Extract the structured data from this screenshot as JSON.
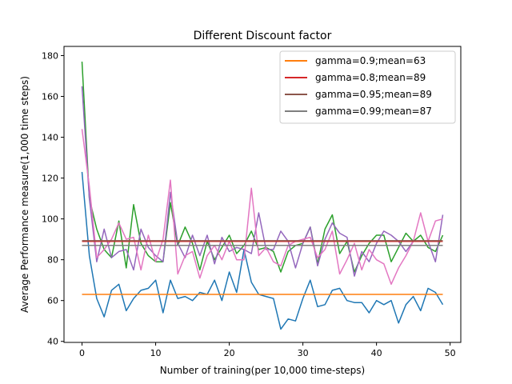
{
  "chart_data": {
    "type": "line",
    "title": "Different Discount factor",
    "xlabel": "Number of training(per 10,000 time-steps)",
    "ylabel": "Average Performance measure(1,000 time steps)",
    "xlim": [
      -2.45,
      51.45
    ],
    "ylim": [
      39.5,
      184.5
    ],
    "xticks": [
      0,
      10,
      20,
      30,
      40,
      50
    ],
    "yticks": [
      40,
      60,
      80,
      100,
      120,
      140,
      160,
      180
    ],
    "grid": false,
    "legend_position": "top-right",
    "x": [
      0,
      1,
      2,
      3,
      4,
      5,
      6,
      7,
      8,
      9,
      10,
      11,
      12,
      13,
      14,
      15,
      16,
      17,
      18,
      19,
      20,
      21,
      22,
      23,
      24,
      25,
      26,
      27,
      28,
      29,
      30,
      31,
      32,
      33,
      34,
      35,
      36,
      37,
      38,
      39,
      40,
      41,
      42,
      43,
      44,
      45,
      46,
      47,
      48,
      49
    ],
    "series": [
      {
        "color": "#1f77b4",
        "values": [
          123,
          82,
          61,
          52,
          65,
          68,
          55,
          61,
          65,
          66,
          70,
          54,
          70,
          61,
          62,
          60,
          64,
          63,
          70,
          60,
          74,
          64,
          85,
          69,
          63,
          62,
          61,
          46,
          51,
          50,
          61,
          70,
          57,
          58,
          65,
          66,
          60,
          59,
          59,
          54,
          60,
          58,
          60,
          49,
          58,
          62,
          55,
          66,
          64,
          58
        ]
      },
      {
        "color": "#2ca02c",
        "values": [
          177,
          110,
          95,
          85,
          81,
          99,
          76,
          107,
          88,
          82,
          79,
          79,
          108,
          87,
          96,
          88,
          75,
          89,
          80,
          86,
          92,
          83,
          87,
          94,
          85,
          86,
          84,
          74,
          84,
          87,
          88,
          96,
          78,
          95,
          102,
          83,
          89,
          74,
          82,
          88,
          92,
          92,
          79,
          86,
          93,
          89,
          92,
          86,
          84,
          92
        ]
      },
      {
        "color": "#9467bd",
        "values": [
          165,
          110,
          79,
          95,
          81,
          84,
          85,
          75,
          95,
          86,
          82,
          79,
          113,
          88,
          81,
          92,
          82,
          92,
          78,
          91,
          84,
          86,
          85,
          83,
          103,
          85,
          85,
          94,
          89,
          76,
          88,
          96,
          77,
          90,
          98,
          93,
          91,
          72,
          84,
          79,
          88,
          94,
          92,
          89,
          84,
          89,
          89,
          89,
          79,
          102
        ]
      },
      {
        "color": "#e377c2",
        "values": [
          144,
          116,
          81,
          85,
          90,
          98,
          90,
          91,
          75,
          92,
          79,
          90,
          119,
          73,
          82,
          84,
          71,
          82,
          87,
          80,
          89,
          80,
          80,
          115,
          82,
          86,
          79,
          77,
          87,
          89,
          90,
          91,
          81,
          85,
          94,
          73,
          80,
          88,
          75,
          85,
          80,
          78,
          68,
          76,
          82,
          89,
          103,
          89,
          99,
          100
        ]
      },
      {
        "name": "gamma=0.9;mean=63",
        "color": "#ff7f0e",
        "values": [
          63,
          63,
          63,
          63,
          63,
          63,
          63,
          63,
          63,
          63,
          63,
          63,
          63,
          63,
          63,
          63,
          63,
          63,
          63,
          63,
          63,
          63,
          63,
          63,
          63,
          63,
          63,
          63,
          63,
          63,
          63,
          63,
          63,
          63,
          63,
          63,
          63,
          63,
          63,
          63,
          63,
          63,
          63,
          63,
          63,
          63,
          63,
          63,
          63,
          63
        ]
      },
      {
        "name": "gamma=0.8;mean=89",
        "color": "#d62728",
        "values": [
          89,
          89,
          89,
          89,
          89,
          89,
          89,
          89,
          89,
          89,
          89,
          89,
          89,
          89,
          89,
          89,
          89,
          89,
          89,
          89,
          89,
          89,
          89,
          89,
          89,
          89,
          89,
          89,
          89,
          89,
          89,
          89,
          89,
          89,
          89,
          89,
          89,
          89,
          89,
          89,
          89,
          89,
          89,
          89,
          89,
          89,
          89,
          89,
          89,
          89
        ]
      },
      {
        "name": "gamma=0.95;mean=89",
        "color": "#8c564b",
        "values": [
          89.3,
          89.3,
          89.3,
          89.3,
          89.3,
          89.3,
          89.3,
          89.3,
          89.3,
          89.3,
          89.3,
          89.3,
          89.3,
          89.3,
          89.3,
          89.3,
          89.3,
          89.3,
          89.3,
          89.3,
          89.3,
          89.3,
          89.3,
          89.3,
          89.3,
          89.3,
          89.3,
          89.3,
          89.3,
          89.3,
          89.3,
          89.3,
          89.3,
          89.3,
          89.3,
          89.3,
          89.3,
          89.3,
          89.3,
          89.3,
          89.3,
          89.3,
          89.3,
          89.3,
          89.3,
          89.3,
          89.3,
          89.3,
          89.3,
          89.3
        ]
      },
      {
        "name": "gamma=0.99;mean=87",
        "color": "#7f7f7f",
        "values": [
          87,
          87,
          87,
          87,
          87,
          87,
          87,
          87,
          87,
          87,
          87,
          87,
          87,
          87,
          87,
          87,
          87,
          87,
          87,
          87,
          87,
          87,
          87,
          87,
          87,
          87,
          87,
          87,
          87,
          87,
          87,
          87,
          87,
          87,
          87,
          87,
          87,
          87,
          87,
          87,
          87,
          87,
          87,
          87,
          87,
          87,
          87,
          87,
          87,
          87
        ]
      }
    ],
    "legend": [
      {
        "label": "gamma=0.9;mean=63",
        "color": "#ff7f0e"
      },
      {
        "label": "gamma=0.8;mean=89",
        "color": "#d62728"
      },
      {
        "label": "gamma=0.95;mean=89",
        "color": "#8c564b"
      },
      {
        "label": "gamma=0.99;mean=87",
        "color": "#7f7f7f"
      }
    ]
  }
}
